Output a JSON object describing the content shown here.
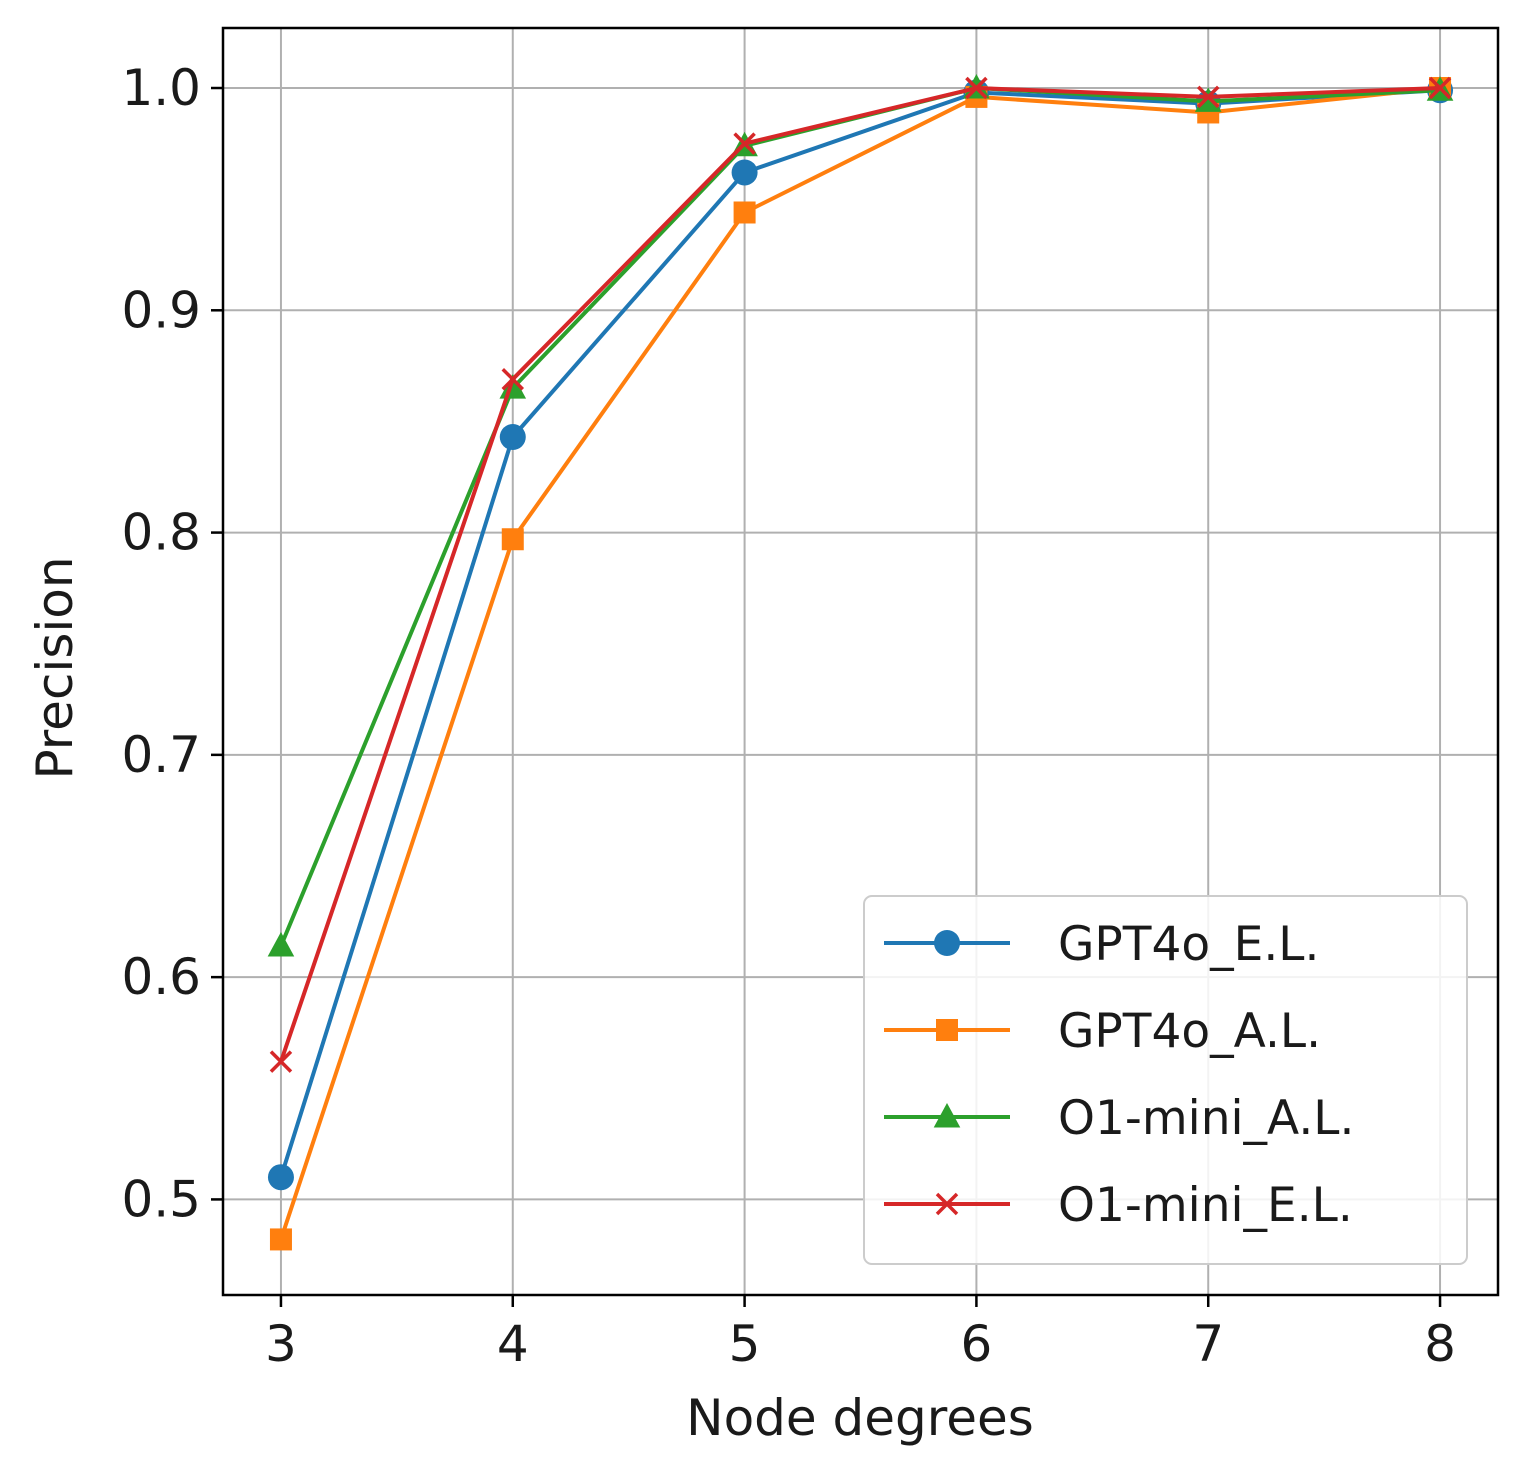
{
  "chart_data": {
    "type": "line",
    "title": "",
    "xlabel": "Node degrees",
    "ylabel": "Precision",
    "x": [
      3,
      4,
      5,
      6,
      7,
      8
    ],
    "x_tick_labels": [
      "3",
      "4",
      "5",
      "6",
      "7",
      "8"
    ],
    "xlim": [
      2.75,
      8.25
    ],
    "ylim": [
      0.457,
      1.027
    ],
    "y_ticks": [
      0.5,
      0.6,
      0.7,
      0.8,
      0.9,
      1.0
    ],
    "y_tick_labels": [
      "0.5",
      "0.6",
      "0.7",
      "0.8",
      "0.9",
      "1.0"
    ],
    "grid": true,
    "legend_position": "lower-right",
    "series": [
      {
        "name": "GPT4o_E.L.",
        "color": "#1f77b4",
        "marker": "circle",
        "values": [
          0.51,
          0.843,
          0.962,
          0.998,
          0.993,
          0.999
        ]
      },
      {
        "name": "GPT4o_A.L.",
        "color": "#ff7f0e",
        "marker": "square",
        "values": [
          0.482,
          0.797,
          0.944,
          0.996,
          0.989,
          1.0
        ]
      },
      {
        "name": "O1-mini_A.L.",
        "color": "#2ca02c",
        "marker": "triangle",
        "values": [
          0.614,
          0.865,
          0.974,
          1.0,
          0.994,
          0.999
        ]
      },
      {
        "name": "O1-mini_E.L.",
        "color": "#d62728",
        "marker": "x",
        "values": [
          0.562,
          0.869,
          0.975,
          1.0,
          0.996,
          1.0
        ]
      }
    ]
  }
}
